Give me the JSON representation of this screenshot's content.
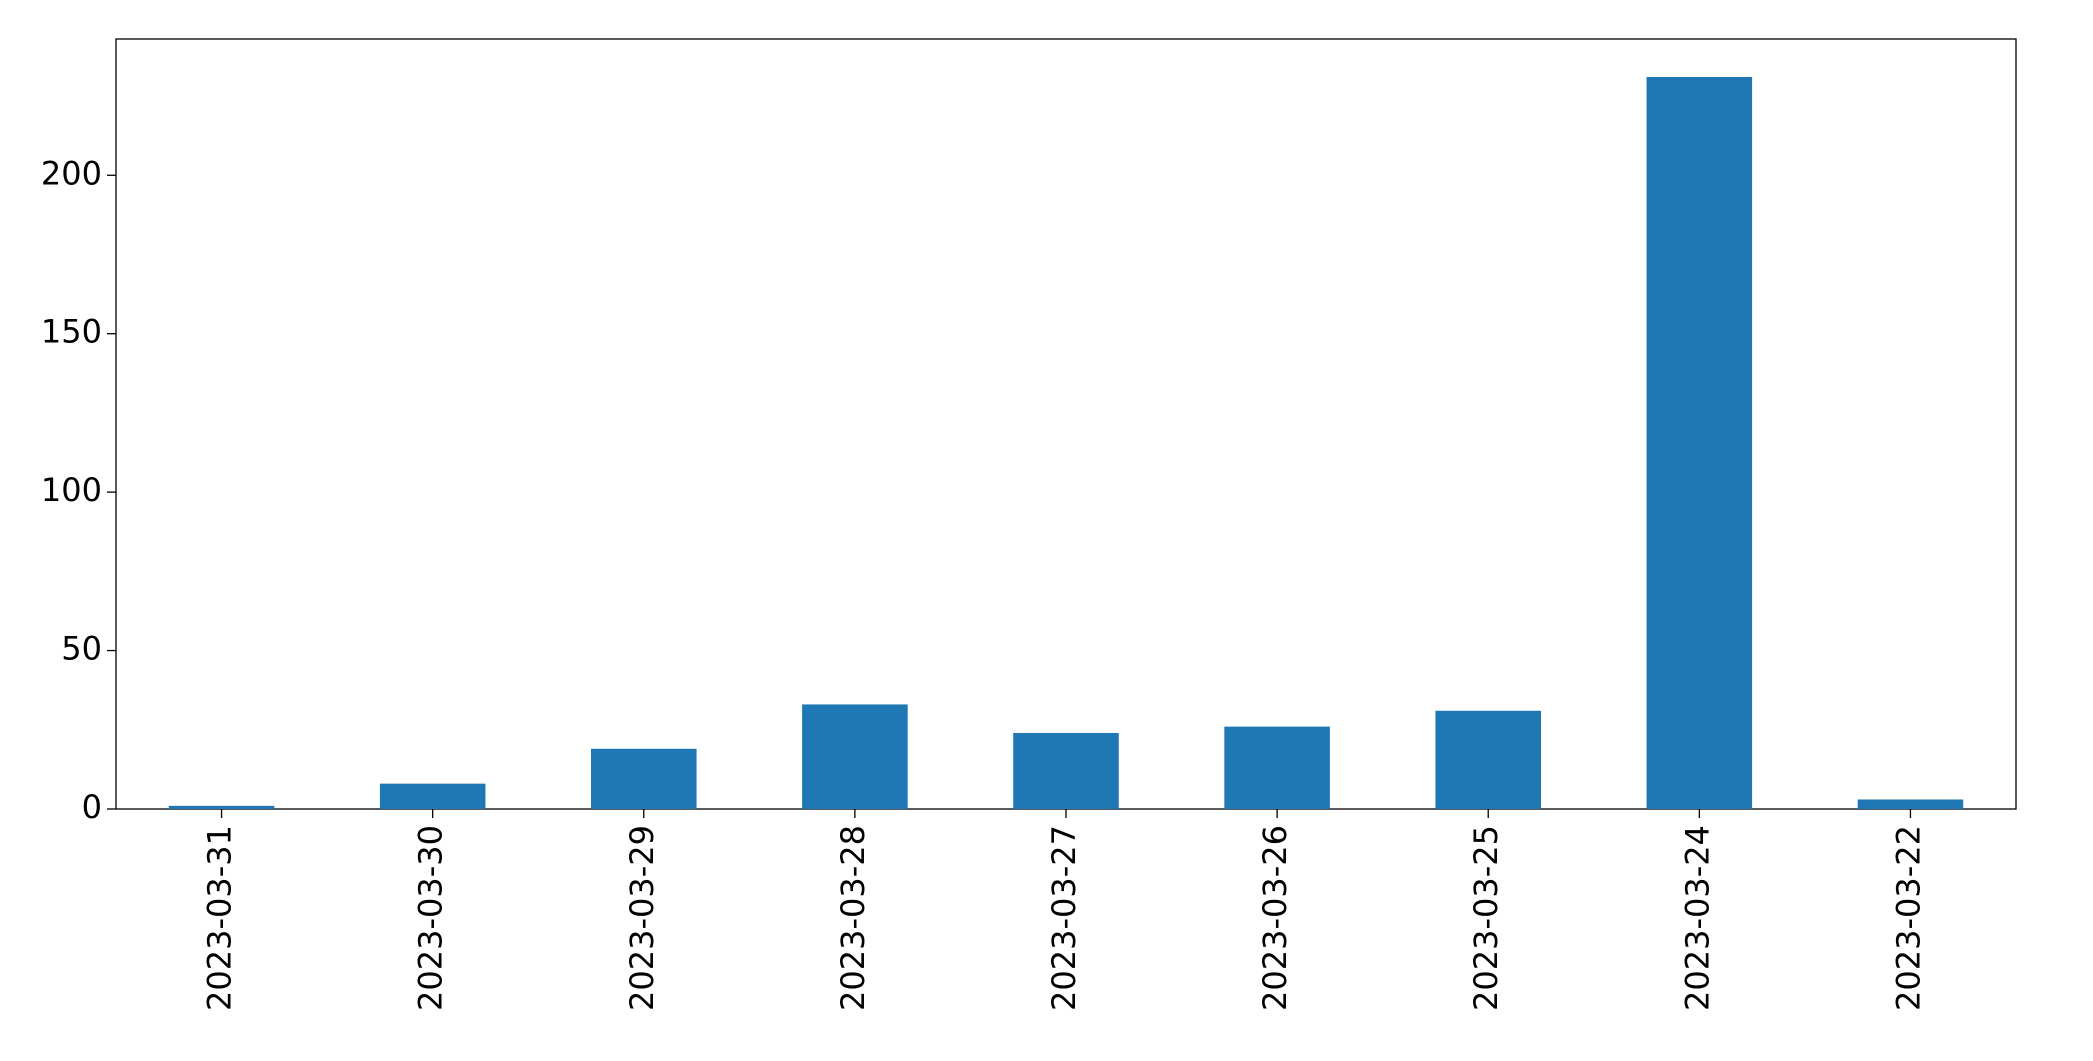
{
  "chart_data": {
    "type": "bar",
    "categories": [
      "2023-03-31",
      "2023-03-30",
      "2023-03-29",
      "2023-03-28",
      "2023-03-27",
      "2023-03-26",
      "2023-03-25",
      "2023-03-24",
      "2023-03-22"
    ],
    "values": [
      1,
      8,
      19,
      33,
      24,
      26,
      31,
      231,
      3
    ],
    "color": "#1f77b4",
    "ylim": [
      0,
      243
    ],
    "yticks": [
      0,
      50,
      100,
      150,
      200
    ],
    "grid": false
  }
}
